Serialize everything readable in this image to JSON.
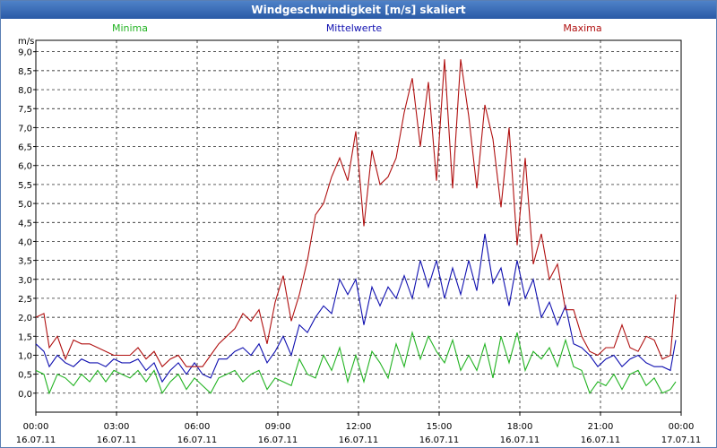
{
  "window": {
    "title": "Windgeschwindigkeit [m/s] skaliert"
  },
  "chart_data": {
    "type": "line",
    "title": "Windgeschwindigkeit [m/s] skaliert",
    "ylabel": "m/s",
    "ylim": [
      -0.5,
      9.3
    ],
    "xlim_hours": [
      0,
      24
    ],
    "yticks": [
      "0,0",
      "0,5",
      "1,0",
      "1,5",
      "2,0",
      "2,5",
      "3,0",
      "3,5",
      "4,0",
      "4,5",
      "5,0",
      "5,5",
      "6,0",
      "6,5",
      "7,0",
      "7,5",
      "8,0",
      "8,5",
      "9,0"
    ],
    "ytick_values": [
      0,
      0.5,
      1,
      1.5,
      2,
      2.5,
      3,
      3.5,
      4,
      4.5,
      5,
      5.5,
      6,
      6.5,
      7,
      7.5,
      8,
      8.5,
      9
    ],
    "xticks": [
      {
        "time": "00:00",
        "date": "16.07.11"
      },
      {
        "time": "03:00",
        "date": "16.07.11"
      },
      {
        "time": "06:00",
        "date": "16.07.11"
      },
      {
        "time": "09:00",
        "date": "16.07.11"
      },
      {
        "time": "12:00",
        "date": "16.07.11"
      },
      {
        "time": "15:00",
        "date": "16.07.11"
      },
      {
        "time": "18:00",
        "date": "16.07.11"
      },
      {
        "time": "21:00",
        "date": "16.07.11"
      },
      {
        "time": "00:00",
        "date": "17.07.11"
      }
    ],
    "grid": true,
    "legend_placement": "top",
    "series": [
      {
        "name": "Minima",
        "color": "#22b322",
        "points": [
          [
            0,
            0.6
          ],
          [
            0.3,
            0.5
          ],
          [
            0.5,
            0.0
          ],
          [
            0.8,
            0.5
          ],
          [
            1.1,
            0.4
          ],
          [
            1.4,
            0.2
          ],
          [
            1.7,
            0.5
          ],
          [
            2.0,
            0.3
          ],
          [
            2.3,
            0.6
          ],
          [
            2.6,
            0.3
          ],
          [
            2.9,
            0.6
          ],
          [
            3.2,
            0.5
          ],
          [
            3.5,
            0.4
          ],
          [
            3.8,
            0.6
          ],
          [
            4.1,
            0.3
          ],
          [
            4.4,
            0.6
          ],
          [
            4.7,
            0.0
          ],
          [
            5.0,
            0.3
          ],
          [
            5.3,
            0.5
          ],
          [
            5.6,
            0.1
          ],
          [
            5.9,
            0.4
          ],
          [
            6.2,
            0.2
          ],
          [
            6.5,
            0.0
          ],
          [
            6.8,
            0.4
          ],
          [
            7.1,
            0.5
          ],
          [
            7.4,
            0.6
          ],
          [
            7.7,
            0.3
          ],
          [
            8.0,
            0.5
          ],
          [
            8.3,
            0.6
          ],
          [
            8.6,
            0.1
          ],
          [
            8.9,
            0.4
          ],
          [
            9.2,
            0.3
          ],
          [
            9.5,
            0.2
          ],
          [
            9.8,
            0.9
          ],
          [
            10.1,
            0.5
          ],
          [
            10.4,
            0.4
          ],
          [
            10.7,
            1.0
          ],
          [
            11.0,
            0.6
          ],
          [
            11.3,
            1.2
          ],
          [
            11.6,
            0.3
          ],
          [
            11.9,
            1.0
          ],
          [
            12.2,
            0.3
          ],
          [
            12.5,
            1.1
          ],
          [
            12.8,
            0.8
          ],
          [
            13.1,
            0.4
          ],
          [
            13.4,
            1.3
          ],
          [
            13.7,
            0.7
          ],
          [
            14.0,
            1.6
          ],
          [
            14.3,
            0.9
          ],
          [
            14.6,
            1.5
          ],
          [
            14.9,
            1.1
          ],
          [
            15.2,
            0.8
          ],
          [
            15.5,
            1.4
          ],
          [
            15.8,
            0.6
          ],
          [
            16.1,
            1.0
          ],
          [
            16.4,
            0.6
          ],
          [
            16.7,
            1.3
          ],
          [
            17.0,
            0.4
          ],
          [
            17.3,
            1.5
          ],
          [
            17.6,
            0.8
          ],
          [
            17.9,
            1.6
          ],
          [
            18.2,
            0.6
          ],
          [
            18.5,
            1.1
          ],
          [
            18.8,
            0.9
          ],
          [
            19.1,
            1.2
          ],
          [
            19.4,
            0.7
          ],
          [
            19.7,
            1.4
          ],
          [
            20.0,
            0.7
          ],
          [
            20.3,
            0.6
          ],
          [
            20.6,
            0.0
          ],
          [
            20.9,
            0.3
          ],
          [
            21.2,
            0.2
          ],
          [
            21.5,
            0.5
          ],
          [
            21.8,
            0.1
          ],
          [
            22.1,
            0.5
          ],
          [
            22.4,
            0.6
          ],
          [
            22.7,
            0.2
          ],
          [
            23.0,
            0.4
          ],
          [
            23.3,
            0.0
          ],
          [
            23.6,
            0.1
          ],
          [
            23.8,
            0.3
          ]
        ]
      },
      {
        "name": "Mittelwerte",
        "color": "#1010b0",
        "points": [
          [
            0,
            1.3
          ],
          [
            0.3,
            1.1
          ],
          [
            0.5,
            0.7
          ],
          [
            0.8,
            1.0
          ],
          [
            1.1,
            0.8
          ],
          [
            1.4,
            0.7
          ],
          [
            1.7,
            0.9
          ],
          [
            2.0,
            0.8
          ],
          [
            2.3,
            0.8
          ],
          [
            2.6,
            0.7
          ],
          [
            2.9,
            0.9
          ],
          [
            3.2,
            0.8
          ],
          [
            3.5,
            0.8
          ],
          [
            3.8,
            0.9
          ],
          [
            4.1,
            0.6
          ],
          [
            4.4,
            0.8
          ],
          [
            4.7,
            0.3
          ],
          [
            5.0,
            0.6
          ],
          [
            5.3,
            0.8
          ],
          [
            5.6,
            0.5
          ],
          [
            5.9,
            0.8
          ],
          [
            6.2,
            0.5
          ],
          [
            6.5,
            0.4
          ],
          [
            6.8,
            0.9
          ],
          [
            7.1,
            0.9
          ],
          [
            7.4,
            1.1
          ],
          [
            7.7,
            1.2
          ],
          [
            8.0,
            1.0
          ],
          [
            8.3,
            1.3
          ],
          [
            8.6,
            0.8
          ],
          [
            8.9,
            1.1
          ],
          [
            9.2,
            1.5
          ],
          [
            9.5,
            1.0
          ],
          [
            9.8,
            1.8
          ],
          [
            10.1,
            1.6
          ],
          [
            10.4,
            2.0
          ],
          [
            10.7,
            2.3
          ],
          [
            11.0,
            2.1
          ],
          [
            11.3,
            3.0
          ],
          [
            11.6,
            2.6
          ],
          [
            11.9,
            3.0
          ],
          [
            12.2,
            1.8
          ],
          [
            12.5,
            2.8
          ],
          [
            12.8,
            2.3
          ],
          [
            13.1,
            2.8
          ],
          [
            13.4,
            2.5
          ],
          [
            13.7,
            3.1
          ],
          [
            14.0,
            2.5
          ],
          [
            14.3,
            3.5
          ],
          [
            14.6,
            2.8
          ],
          [
            14.9,
            3.5
          ],
          [
            15.2,
            2.5
          ],
          [
            15.5,
            3.3
          ],
          [
            15.8,
            2.6
          ],
          [
            16.1,
            3.5
          ],
          [
            16.4,
            2.7
          ],
          [
            16.7,
            4.2
          ],
          [
            17.0,
            2.9
          ],
          [
            17.3,
            3.3
          ],
          [
            17.6,
            2.3
          ],
          [
            17.9,
            3.5
          ],
          [
            18.2,
            2.5
          ],
          [
            18.5,
            3.0
          ],
          [
            18.8,
            2.0
          ],
          [
            19.1,
            2.4
          ],
          [
            19.4,
            1.8
          ],
          [
            19.7,
            2.3
          ],
          [
            20.0,
            1.3
          ],
          [
            20.3,
            1.2
          ],
          [
            20.6,
            1.0
          ],
          [
            20.9,
            0.7
          ],
          [
            21.2,
            0.9
          ],
          [
            21.5,
            1.0
          ],
          [
            21.8,
            0.7
          ],
          [
            22.1,
            0.9
          ],
          [
            22.4,
            1.0
          ],
          [
            22.7,
            0.8
          ],
          [
            23.0,
            0.7
          ],
          [
            23.3,
            0.7
          ],
          [
            23.6,
            0.6
          ],
          [
            23.8,
            1.4
          ]
        ]
      },
      {
        "name": "Maxima",
        "color": "#b01010",
        "points": [
          [
            0,
            2.0
          ],
          [
            0.3,
            2.1
          ],
          [
            0.5,
            1.2
          ],
          [
            0.8,
            1.5
          ],
          [
            1.1,
            0.9
          ],
          [
            1.4,
            1.4
          ],
          [
            1.7,
            1.3
          ],
          [
            2.0,
            1.3
          ],
          [
            2.3,
            1.2
          ],
          [
            2.6,
            1.1
          ],
          [
            2.9,
            1.0
          ],
          [
            3.2,
            1.0
          ],
          [
            3.5,
            1.0
          ],
          [
            3.8,
            1.2
          ],
          [
            4.1,
            0.9
          ],
          [
            4.4,
            1.1
          ],
          [
            4.7,
            0.7
          ],
          [
            5.0,
            0.9
          ],
          [
            5.3,
            1.0
          ],
          [
            5.6,
            0.7
          ],
          [
            5.9,
            0.7
          ],
          [
            6.2,
            0.7
          ],
          [
            6.5,
            1.0
          ],
          [
            6.8,
            1.3
          ],
          [
            7.1,
            1.5
          ],
          [
            7.4,
            1.7
          ],
          [
            7.7,
            2.1
          ],
          [
            8.0,
            1.9
          ],
          [
            8.3,
            2.2
          ],
          [
            8.6,
            1.3
          ],
          [
            8.9,
            2.4
          ],
          [
            9.2,
            3.1
          ],
          [
            9.5,
            1.9
          ],
          [
            9.8,
            2.6
          ],
          [
            10.1,
            3.5
          ],
          [
            10.4,
            4.7
          ],
          [
            10.7,
            5.0
          ],
          [
            11.0,
            5.7
          ],
          [
            11.3,
            6.2
          ],
          [
            11.6,
            5.6
          ],
          [
            11.9,
            6.9
          ],
          [
            12.2,
            4.4
          ],
          [
            12.5,
            6.4
          ],
          [
            12.8,
            5.5
          ],
          [
            13.1,
            5.7
          ],
          [
            13.4,
            6.2
          ],
          [
            13.7,
            7.4
          ],
          [
            14.0,
            8.3
          ],
          [
            14.3,
            6.5
          ],
          [
            14.6,
            8.2
          ],
          [
            14.9,
            5.6
          ],
          [
            15.2,
            8.8
          ],
          [
            15.5,
            5.4
          ],
          [
            15.8,
            8.8
          ],
          [
            16.1,
            7.3
          ],
          [
            16.4,
            5.4
          ],
          [
            16.7,
            7.6
          ],
          [
            17.0,
            6.7
          ],
          [
            17.3,
            4.9
          ],
          [
            17.6,
            7.0
          ],
          [
            17.9,
            3.9
          ],
          [
            18.2,
            6.2
          ],
          [
            18.5,
            3.4
          ],
          [
            18.8,
            4.2
          ],
          [
            19.1,
            3.0
          ],
          [
            19.4,
            3.4
          ],
          [
            19.7,
            2.2
          ],
          [
            20.0,
            2.2
          ],
          [
            20.3,
            1.5
          ],
          [
            20.6,
            1.1
          ],
          [
            20.9,
            1.0
          ],
          [
            21.2,
            1.2
          ],
          [
            21.5,
            1.2
          ],
          [
            21.8,
            1.8
          ],
          [
            22.1,
            1.2
          ],
          [
            22.4,
            1.1
          ],
          [
            22.7,
            1.5
          ],
          [
            23.0,
            1.4
          ],
          [
            23.3,
            0.9
          ],
          [
            23.6,
            1.0
          ],
          [
            23.8,
            2.6
          ]
        ]
      }
    ]
  }
}
